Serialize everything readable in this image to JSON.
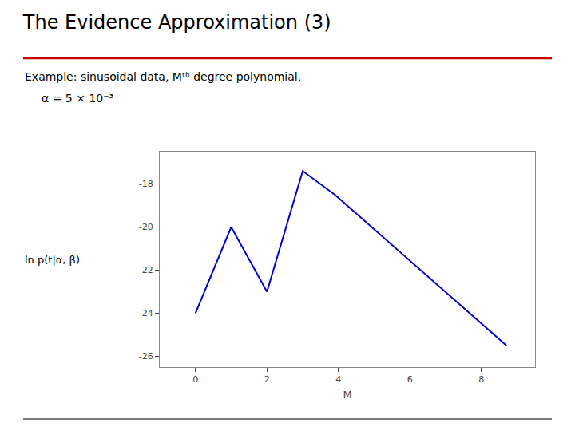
{
  "chart_data": {
    "type": "line",
    "title": "The Evidence Approximation (3)",
    "subtitle": "Example: sinusoidal data, Mᵗʰ degree polynomial,",
    "annotations": [
      {
        "text": "α = 5 × 10⁻³"
      }
    ],
    "xlabel": "M",
    "ylabel": "ln p(t|α, β)",
    "x": [
      0,
      1,
      2,
      3,
      3.9,
      8.7
    ],
    "values": [
      -24.0,
      -20.0,
      -23.0,
      -17.4,
      -18.5,
      -25.5
    ],
    "color": "#0000cc",
    "xlim": [
      -1,
      9.5
    ],
    "ylim": [
      -26.5,
      -16.5
    ],
    "xticks": [
      0,
      2,
      4,
      6,
      8
    ],
    "yticks": [
      -18,
      -20,
      -22,
      -24,
      -26
    ],
    "grid": false
  }
}
